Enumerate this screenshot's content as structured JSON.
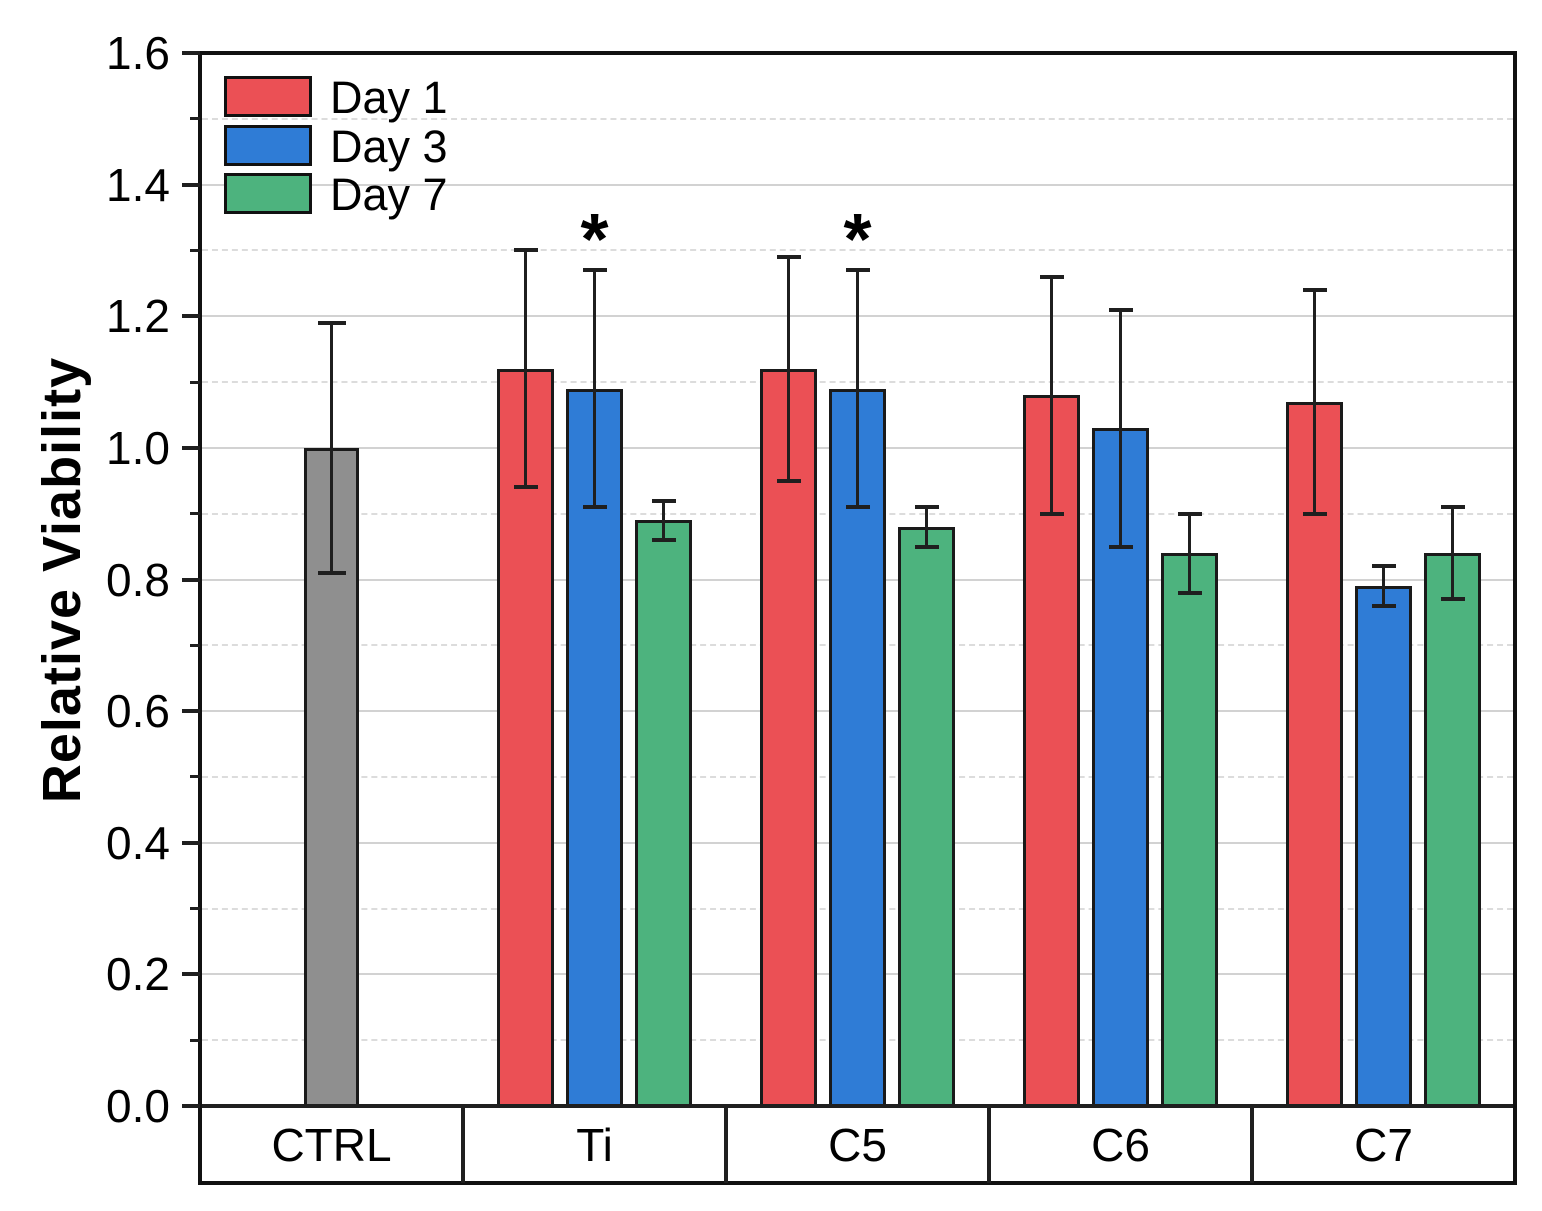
{
  "chart_data": {
    "type": "bar",
    "title": "",
    "xlabel": "",
    "ylabel": "Relative Viability",
    "ylim": [
      0.0,
      1.6
    ],
    "ytick_step": 0.2,
    "yminor_step": 0.1,
    "ytick_labels": [
      "0.0",
      "0.2",
      "0.4",
      "0.6",
      "0.8",
      "1.0",
      "1.2",
      "1.4",
      "1.6"
    ],
    "grid": "horizontal: major solid, minor dashed",
    "legend_position": "top-left",
    "categories": [
      "CTRL",
      "Ti",
      "C5",
      "C6",
      "C7"
    ],
    "control_series": {
      "name": "CTRL",
      "category": "CTRL",
      "value": 1.0,
      "error": 0.19,
      "color": "#8f8f8f"
    },
    "series": [
      {
        "name": "Day 1",
        "color": "#eb5055",
        "values": [
          null,
          1.12,
          1.12,
          1.08,
          1.07
        ],
        "errors": [
          null,
          0.18,
          0.17,
          0.18,
          0.17
        ]
      },
      {
        "name": "Day 3",
        "color": "#2f7cd6",
        "values": [
          null,
          1.09,
          1.09,
          1.03,
          0.79
        ],
        "errors": [
          null,
          0.18,
          0.18,
          0.18,
          0.03
        ]
      },
      {
        "name": "Day 7",
        "color": "#4db37e",
        "values": [
          null,
          0.89,
          0.88,
          0.84,
          0.84
        ],
        "errors": [
          null,
          0.03,
          0.03,
          0.06,
          0.07
        ]
      }
    ],
    "annotations": [
      {
        "text": "*",
        "category": "Ti",
        "series": "Day 3"
      },
      {
        "text": "*",
        "category": "C5",
        "series": "Day 3"
      }
    ],
    "colors": {
      "frame": "#111111",
      "grid_major": "#d2d2d2",
      "grid_minor": "#dcdcdc",
      "bar_border": "#1a1a1a",
      "error_bar": "#1f1f1f",
      "text": "#000000"
    }
  }
}
